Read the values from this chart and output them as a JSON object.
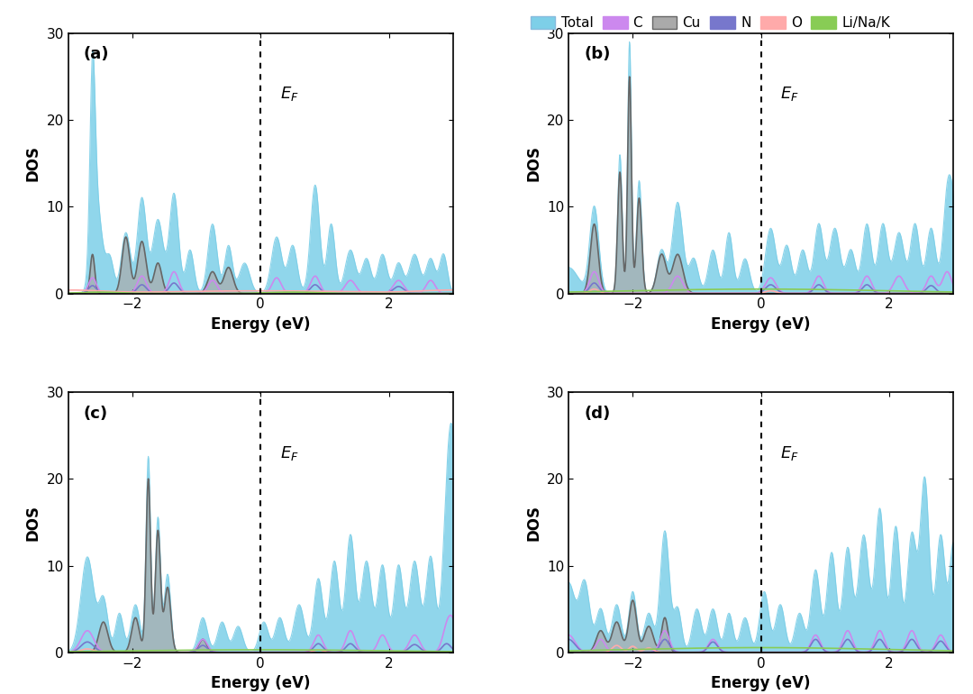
{
  "panels": [
    "(a)",
    "(b)",
    "(c)",
    "(d)"
  ],
  "xlim": [
    -3.0,
    3.0
  ],
  "ylim": [
    0,
    30
  ],
  "yticks": [
    0,
    10,
    20,
    30
  ],
  "xticks": [
    -2,
    0,
    2
  ],
  "xlabel": "Energy (eV)",
  "ylabel": "DOS",
  "ef_x": 0.3,
  "ef_y": 23,
  "colors": {
    "total": "#7DCFE8",
    "C": "#CC88EE",
    "Cu": "#AAAAAA",
    "Cu_line": "#666666",
    "N": "#7777CC",
    "O": "#FFAAAA",
    "LiNaK": "#88CC55"
  },
  "legend_labels": [
    "Total",
    "C",
    "Cu",
    "N",
    "O",
    "Li/Na/K"
  ],
  "background": "#ffffff"
}
